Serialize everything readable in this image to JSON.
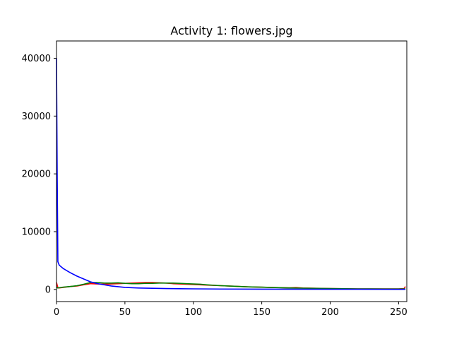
{
  "chart_data": {
    "type": "line",
    "title": "Activity 1: flowers.jpg",
    "xlabel": "",
    "ylabel": "",
    "xlim": [
      0,
      256
    ],
    "ylim": [
      -2100,
      43000
    ],
    "xticks": [
      0,
      50,
      100,
      150,
      200,
      250
    ],
    "yticks": [
      0,
      10000,
      20000,
      30000,
      40000
    ],
    "grid": false,
    "legend": "none",
    "series": [
      {
        "color": "#ff0000",
        "x": [
          0,
          1,
          2,
          5,
          10,
          15,
          20,
          25,
          30,
          35,
          40,
          45,
          50,
          55,
          60,
          65,
          70,
          75,
          80,
          85,
          90,
          95,
          100,
          110,
          120,
          130,
          140,
          150,
          160,
          170,
          175,
          180,
          190,
          200,
          210,
          220,
          230,
          240,
          250,
          254,
          255
        ],
        "y": [
          1200,
          300,
          250,
          350,
          500,
          600,
          800,
          1000,
          950,
          900,
          950,
          1000,
          1050,
          1100,
          1150,
          1200,
          1200,
          1150,
          1100,
          1000,
          950,
          900,
          850,
          750,
          650,
          550,
          450,
          380,
          330,
          280,
          320,
          250,
          200,
          150,
          120,
          100,
          100,
          100,
          100,
          150,
          500
        ]
      },
      {
        "color": "#008000",
        "x": [
          0,
          1,
          2,
          5,
          10,
          15,
          20,
          25,
          30,
          35,
          40,
          45,
          50,
          55,
          60,
          65,
          70,
          75,
          80,
          85,
          90,
          95,
          100,
          105,
          110,
          120,
          130,
          140,
          150,
          160,
          170,
          180,
          190,
          200,
          210,
          220,
          230,
          240,
          250,
          255
        ],
        "y": [
          400,
          250,
          300,
          400,
          500,
          650,
          900,
          1200,
          1200,
          1100,
          1100,
          1150,
          1050,
          1000,
          1000,
          1050,
          1050,
          1100,
          1100,
          1100,
          1050,
          1000,
          950,
          900,
          800,
          650,
          550,
          450,
          400,
          320,
          260,
          220,
          180,
          150,
          120,
          100,
          90,
          80,
          80,
          100
        ]
      },
      {
        "color": "#0000ff",
        "x": [
          0,
          0.5,
          1,
          2,
          5,
          10,
          15,
          20,
          25,
          30,
          40,
          50,
          60,
          70,
          80,
          100,
          120,
          150,
          200,
          250,
          255
        ],
        "y": [
          40000,
          20000,
          4800,
          4200,
          3600,
          2900,
          2300,
          1800,
          1300,
          1000,
          600,
          350,
          250,
          200,
          150,
          100,
          70,
          50,
          30,
          20,
          20
        ]
      }
    ]
  }
}
